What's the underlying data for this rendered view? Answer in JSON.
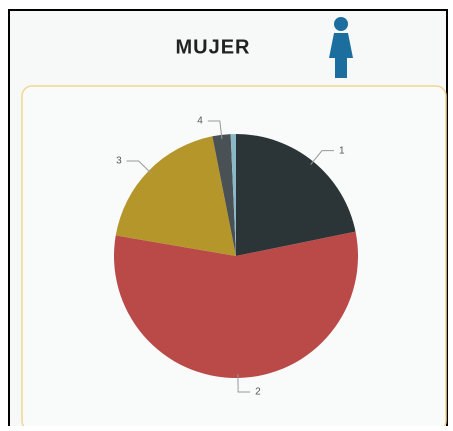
{
  "chart_data": {
    "type": "pie",
    "title": "MUJER",
    "categories": [
      "1",
      "2",
      "3",
      "4",
      null
    ],
    "values": [
      21.8,
      55.9,
      19.2,
      2.4,
      0.7
    ],
    "colors": [
      "#2b3437",
      "#b94a48",
      "#b5962a",
      "#4a5154",
      "#8ab8c8"
    ]
  }
}
